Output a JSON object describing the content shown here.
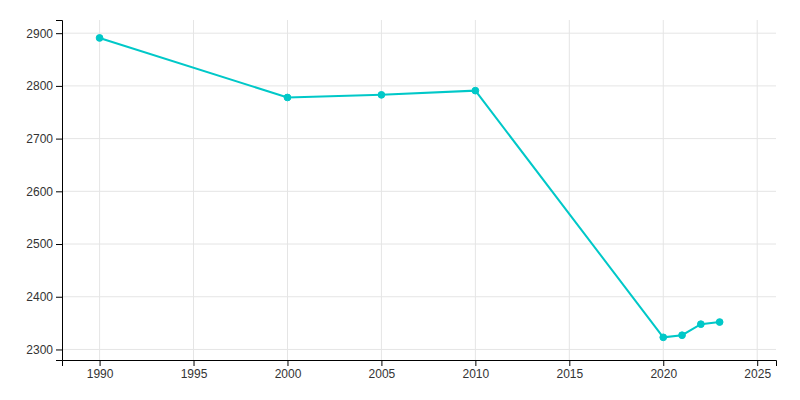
{
  "chart_data": {
    "type": "line",
    "x": [
      1990,
      2000,
      2005,
      2010,
      2020,
      2021,
      2022,
      2023
    ],
    "values": [
      2891,
      2778,
      2783,
      2791,
      2323,
      2327,
      2348,
      2352
    ],
    "color": "#00C8C8",
    "marker": "circle",
    "xlim": [
      1988,
      2026
    ],
    "ylim": [
      2280,
      2925
    ],
    "xticks": [
      1990,
      1995,
      2000,
      2005,
      2010,
      2015,
      2020,
      2025
    ],
    "yticks": [
      2300,
      2400,
      2500,
      2600,
      2700,
      2800,
      2900
    ],
    "grid": true
  }
}
